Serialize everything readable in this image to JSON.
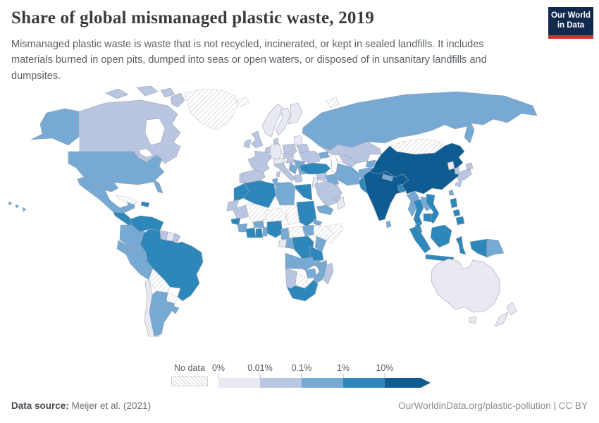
{
  "header": {
    "title": "Share of global mismanaged plastic waste, 2019",
    "subtitle": "Mismanaged plastic waste is waste that is not recycled, incinerated, or kept in sealed landfills. It includes materials burned in open pits, dumped into seas or open waters, or disposed of in unsanitary landfills and dumpsites.",
    "logo": {
      "line1": "Our World",
      "line2": "in Data",
      "bg_color": "#12294e",
      "accent_color": "#c0392e"
    }
  },
  "footer": {
    "source_label": "Data source:",
    "source_value": " Meijer et al. (2021)",
    "license": "OurWorldinData.org/plastic-pollution | CC BY"
  },
  "legend": {
    "no_data_label": "No data",
    "tick_labels": [
      "0%",
      "0.01%",
      "0.1%",
      "1%",
      "10%"
    ]
  },
  "chart_data": {
    "type": "choropleth",
    "title": "Share of global mismanaged plastic waste, 2019",
    "unit": "%",
    "scale": "log-binned, arrow on last bin means 10% and above",
    "bins": [
      {
        "label": "No data",
        "color": "hatched"
      },
      {
        "range": "0% - 0.01%",
        "color": "#e9e9f3"
      },
      {
        "range": "0.01% - 0.1%",
        "color": "#bac5e1"
      },
      {
        "range": "0.1% - 1%",
        "color": "#76a9d3"
      },
      {
        "range": "1% - 10%",
        "color": "#2d87bb"
      },
      {
        "range": "10%+",
        "color": "#0e5c91"
      }
    ],
    "note": "Per-country bin assignments are listed in map.countries (b0 lowest ... b4 highest, nd = no data)."
  },
  "map": {
    "colors": {
      "b0": "#e9e9f3",
      "b1": "#bac5e1",
      "b2": "#76a9d3",
      "b3": "#2d87bb",
      "b4": "#0e5c91",
      "stroke": "#9aa4b0",
      "nd_stroke": "#c7cbd1",
      "water": "#ffffff"
    },
    "countries": [
      {
        "id": "alaska",
        "bucket": "b2"
      },
      {
        "id": "canada",
        "bucket": "b1"
      },
      {
        "id": "arctic-islands",
        "bucket": "b1"
      },
      {
        "id": "baffin-island",
        "bucket": "b1"
      },
      {
        "id": "greenland",
        "bucket": "nd"
      },
      {
        "id": "iceland",
        "bucket": "nd"
      },
      {
        "id": "usa",
        "bucket": "b2"
      },
      {
        "id": "hawaii",
        "bucket": "b2"
      },
      {
        "id": "mexico",
        "bucket": "b2"
      },
      {
        "id": "guatemala-honduras",
        "bucket": "b3"
      },
      {
        "id": "costa-rica-panama",
        "bucket": "b2"
      },
      {
        "id": "cuba",
        "bucket": "nd"
      },
      {
        "id": "hispaniola",
        "bucket": "b3"
      },
      {
        "id": "venezuela",
        "bucket": "b3"
      },
      {
        "id": "colombia",
        "bucket": "b2"
      },
      {
        "id": "guyana",
        "bucket": "b1"
      },
      {
        "id": "suriname",
        "bucket": "b0"
      },
      {
        "id": "french-guiana",
        "bucket": "b1"
      },
      {
        "id": "ecuador",
        "bucket": "b2"
      },
      {
        "id": "peru",
        "bucket": "b2"
      },
      {
        "id": "brazil",
        "bucket": "b3"
      },
      {
        "id": "bolivia",
        "bucket": "nd"
      },
      {
        "id": "paraguay",
        "bucket": "nd"
      },
      {
        "id": "chile",
        "bucket": "b0"
      },
      {
        "id": "argentina",
        "bucket": "b2"
      },
      {
        "id": "uruguay",
        "bucket": "b2"
      },
      {
        "id": "norway",
        "bucket": "b0"
      },
      {
        "id": "sweden",
        "bucket": "b0"
      },
      {
        "id": "finland",
        "bucket": "b0"
      },
      {
        "id": "denmark",
        "bucket": "b1"
      },
      {
        "id": "uk",
        "bucket": "b1"
      },
      {
        "id": "ireland",
        "bucket": "b1"
      },
      {
        "id": "benelux",
        "bucket": "b1"
      },
      {
        "id": "germany",
        "bucket": "b0"
      },
      {
        "id": "france",
        "bucket": "b1"
      },
      {
        "id": "spain",
        "bucket": "b1"
      },
      {
        "id": "portugal",
        "bucket": "b1"
      },
      {
        "id": "italy",
        "bucket": "b1"
      },
      {
        "id": "switzerland-austria",
        "bucket": "b0"
      },
      {
        "id": "czech-slovakia",
        "bucket": "b1"
      },
      {
        "id": "poland",
        "bucket": "b1"
      },
      {
        "id": "baltics",
        "bucket": "b0"
      },
      {
        "id": "belarus",
        "bucket": "b1"
      },
      {
        "id": "ukraine",
        "bucket": "b1"
      },
      {
        "id": "romania",
        "bucket": "b2"
      },
      {
        "id": "hungary",
        "bucket": "b1"
      },
      {
        "id": "balkans",
        "bucket": "b2"
      },
      {
        "id": "bulgaria",
        "bucket": "b2"
      },
      {
        "id": "greece",
        "bucket": "b1"
      },
      {
        "id": "morocco",
        "bucket": "b3"
      },
      {
        "id": "western-sahara",
        "bucket": "b1"
      },
      {
        "id": "mauritania",
        "bucket": "b1"
      },
      {
        "id": "algeria",
        "bucket": "b3"
      },
      {
        "id": "tunisia",
        "bucket": "b2"
      },
      {
        "id": "libya",
        "bucket": "b2"
      },
      {
        "id": "egypt",
        "bucket": "b3"
      },
      {
        "id": "mali",
        "bucket": "nd"
      },
      {
        "id": "niger",
        "bucket": "nd"
      },
      {
        "id": "chad",
        "bucket": "nd"
      },
      {
        "id": "sudan",
        "bucket": "b3"
      },
      {
        "id": "eritrea",
        "bucket": "b2"
      },
      {
        "id": "ethiopia",
        "bucket": "nd"
      },
      {
        "id": "somalia",
        "bucket": "nd"
      },
      {
        "id": "senegal",
        "bucket": "b3"
      },
      {
        "id": "guinea",
        "bucket": "b2"
      },
      {
        "id": "ivory-coast",
        "bucket": "b3"
      },
      {
        "id": "ghana",
        "bucket": "b3"
      },
      {
        "id": "togo-benin",
        "bucket": "b2"
      },
      {
        "id": "burkina-faso",
        "bucket": "b2"
      },
      {
        "id": "nigeria",
        "bucket": "b3"
      },
      {
        "id": "cameroon",
        "bucket": "b2"
      },
      {
        "id": "central-african-republic",
        "bucket": "nd"
      },
      {
        "id": "south-sudan",
        "bucket": "b2"
      },
      {
        "id": "gabon",
        "bucket": "b0"
      },
      {
        "id": "congo",
        "bucket": "b2"
      },
      {
        "id": "drc",
        "bucket": "b3"
      },
      {
        "id": "kenya",
        "bucket": "b2"
      },
      {
        "id": "tanzania",
        "bucket": "b3"
      },
      {
        "id": "angola",
        "bucket": "b2"
      },
      {
        "id": "zambia",
        "bucket": "b2"
      },
      {
        "id": "malawi",
        "bucket": "b2"
      },
      {
        "id": "mozambique",
        "bucket": "b2"
      },
      {
        "id": "zimbabwe",
        "bucket": "b2"
      },
      {
        "id": "botswana",
        "bucket": "nd"
      },
      {
        "id": "namibia",
        "bucket": "b1"
      },
      {
        "id": "south-africa",
        "bucket": "b3"
      },
      {
        "id": "madagascar",
        "bucket": "b1"
      },
      {
        "id": "russia",
        "bucket": "b2"
      },
      {
        "id": "sakhalin",
        "bucket": "b2"
      },
      {
        "id": "novaya-zemlya",
        "bucket": "nd"
      },
      {
        "id": "kazakhstan",
        "bucket": "b1"
      },
      {
        "id": "uzbekistan",
        "bucket": "b1"
      },
      {
        "id": "turkmenistan",
        "bucket": "nd"
      },
      {
        "id": "kyrgyzstan",
        "bucket": "b2"
      },
      {
        "id": "caucasus",
        "bucket": "b2"
      },
      {
        "id": "turkey",
        "bucket": "b3"
      },
      {
        "id": "syria",
        "bucket": "b1"
      },
      {
        "id": "levant",
        "bucket": "b0"
      },
      {
        "id": "iraq",
        "bucket": "b2"
      },
      {
        "id": "iran",
        "bucket": "b2"
      },
      {
        "id": "afghanistan",
        "bucket": "b2"
      },
      {
        "id": "pakistan",
        "bucket": "b3"
      },
      {
        "id": "saudi-arabia",
        "bucket": "b1"
      },
      {
        "id": "yemen",
        "bucket": "b2"
      },
      {
        "id": "oman",
        "bucket": "b0"
      },
      {
        "id": "uae",
        "bucket": "b1"
      },
      {
        "id": "india",
        "bucket": "b4"
      },
      {
        "id": "nepal",
        "bucket": "b2"
      },
      {
        "id": "bangladesh",
        "bucket": "b3"
      },
      {
        "id": "sri-lanka",
        "bucket": "b2"
      },
      {
        "id": "mongolia",
        "bucket": "nd"
      },
      {
        "id": "china",
        "bucket": "b4"
      },
      {
        "id": "north-korea",
        "bucket": "b0"
      },
      {
        "id": "south-korea",
        "bucket": "b1"
      },
      {
        "id": "japan",
        "bucket": "b1"
      },
      {
        "id": "taiwan",
        "bucket": "b2"
      },
      {
        "id": "myanmar",
        "bucket": "b2"
      },
      {
        "id": "thailand",
        "bucket": "b3"
      },
      {
        "id": "laos",
        "bucket": "b2"
      },
      {
        "id": "vietnam",
        "bucket": "b3"
      },
      {
        "id": "cambodia",
        "bucket": "b3"
      },
      {
        "id": "malaysia",
        "bucket": "b3"
      },
      {
        "id": "philippines",
        "bucket": "b3"
      },
      {
        "id": "indonesia",
        "bucket": "b3"
      },
      {
        "id": "papua-new-guinea",
        "bucket": "b2"
      },
      {
        "id": "australia",
        "bucket": "b0"
      },
      {
        "id": "tasmania",
        "bucket": "b0"
      },
      {
        "id": "new-zealand",
        "bucket": "b0"
      }
    ]
  }
}
